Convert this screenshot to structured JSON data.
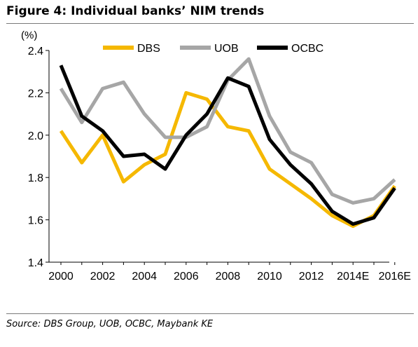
{
  "title": "Figure 4: Individual banks’ NIM trends",
  "source": "Source: DBS Group, UOB, OCBC, Maybank KE",
  "chart_data": {
    "type": "line",
    "title": "Figure 4: Individual banks’ NIM trends",
    "ylabel": "(%)",
    "xlabel": "",
    "ylim": [
      1.4,
      2.4
    ],
    "yticks": [
      1.4,
      1.6,
      1.8,
      2.0,
      2.2,
      2.4
    ],
    "ytick_labels": [
      "1.4",
      "1.6",
      "1.8",
      "2.0",
      "2.2",
      "2.4"
    ],
    "x": [
      "2000",
      "2001",
      "2002",
      "2003",
      "2004",
      "2005",
      "2006",
      "2007",
      "2008",
      "2009",
      "2010",
      "2011",
      "2012",
      "2013",
      "2014E",
      "2015E",
      "2016E"
    ],
    "xtick_labels": [
      "2000",
      "2002",
      "2004",
      "2006",
      "2008",
      "2010",
      "2012",
      "2014E",
      "2016E"
    ],
    "legend_position": "top",
    "grid": false,
    "series": [
      {
        "name": "DBS",
        "color": "#F5B800",
        "values": [
          2.02,
          1.87,
          2.0,
          1.78,
          1.86,
          1.91,
          2.2,
          2.17,
          2.04,
          2.02,
          1.84,
          1.77,
          1.7,
          1.62,
          1.57,
          1.62,
          1.76
        ]
      },
      {
        "name": "UOB",
        "color": "#A6A6A6",
        "values": [
          2.22,
          2.06,
          2.22,
          2.25,
          2.1,
          1.99,
          1.99,
          2.04,
          2.26,
          2.36,
          2.09,
          1.92,
          1.87,
          1.72,
          1.68,
          1.7,
          1.79
        ]
      },
      {
        "name": "OCBC",
        "color": "#000000",
        "values": [
          2.33,
          2.09,
          2.02,
          1.9,
          1.91,
          1.84,
          2.0,
          2.1,
          2.27,
          2.23,
          1.98,
          1.86,
          1.77,
          1.64,
          1.58,
          1.61,
          1.75
        ]
      }
    ]
  }
}
